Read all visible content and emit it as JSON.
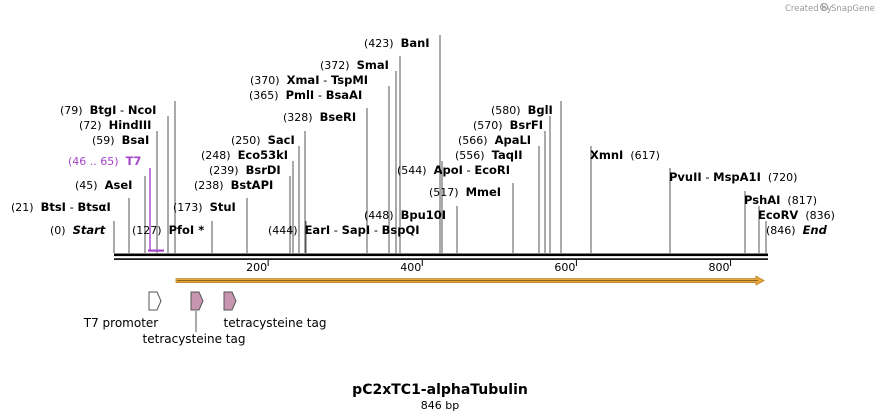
{
  "credit": {
    "prefix": "Created by",
    "brand": "SnapGene"
  },
  "sequence": {
    "name": "pC2xTC1-alphaTubulin",
    "length_label": "846 bp",
    "length": 846
  },
  "colors": {
    "backbone": "#000000",
    "orf_fill": "#e8a93c",
    "orf_edge": "#b87a1e",
    "primer": "#a646c8",
    "tag": "#c895b0"
  },
  "axis": {
    "ticks": [
      {
        "value": 200,
        "label": "200"
      },
      {
        "value": 400,
        "label": "400"
      },
      {
        "value": 600,
        "label": "600"
      },
      {
        "value": 800,
        "label": "800"
      }
    ]
  },
  "labels": [
    {
      "id": "start",
      "pos": 0,
      "pos_label": "(0)",
      "names": [
        "Start"
      ],
      "style": "italic"
    },
    {
      "id": "btsi",
      "pos": 21,
      "pos_label": "(21)",
      "names": [
        "BtsI",
        "BtsαI"
      ]
    },
    {
      "id": "asei",
      "pos": 45,
      "pos_label": "(45)",
      "names": [
        "AseI"
      ]
    },
    {
      "id": "t7",
      "pos": 46,
      "pos_label": "(46 .. 65)",
      "names": [
        "T7"
      ],
      "style": "primer"
    },
    {
      "id": "bsai",
      "pos": 59,
      "pos_label": "(59)",
      "names": [
        "BsaI"
      ]
    },
    {
      "id": "hindiii",
      "pos": 72,
      "pos_label": "(72)",
      "names": [
        "HindIII"
      ]
    },
    {
      "id": "btgi",
      "pos": 79,
      "pos_label": "(79)",
      "names": [
        "BtgI",
        "NcoI"
      ]
    },
    {
      "id": "pfoi",
      "pos": 127,
      "pos_label": "(127)",
      "names": [
        "PfoI *"
      ]
    },
    {
      "id": "stui",
      "pos": 173,
      "pos_label": "(173)",
      "names": [
        "StuI"
      ]
    },
    {
      "id": "bstapi",
      "pos": 238,
      "pos_label": "(238)",
      "names": [
        "BstAPI"
      ]
    },
    {
      "id": "bsrdi",
      "pos": 239,
      "pos_label": "(239)",
      "names": [
        "BsrDI"
      ]
    },
    {
      "id": "eco53ki",
      "pos": 248,
      "pos_label": "(248)",
      "names": [
        "Eco53kI"
      ]
    },
    {
      "id": "saci",
      "pos": 250,
      "pos_label": "(250)",
      "names": [
        "SacI"
      ]
    },
    {
      "id": "ear",
      "pos": 444,
      "pos_label": "(444)",
      "names": [
        "EarI",
        "SapI",
        "BspQI"
      ]
    },
    {
      "id": "bseri",
      "pos": 328,
      "pos_label": "(328)",
      "names": [
        "BseRI"
      ]
    },
    {
      "id": "pmli",
      "pos": 365,
      "pos_label": "(365)",
      "names": [
        "PmlI",
        "BsaAI"
      ]
    },
    {
      "id": "xmai",
      "pos": 370,
      "pos_label": "(370)",
      "names": [
        "XmaI",
        "TspMI"
      ]
    },
    {
      "id": "smai",
      "pos": 372,
      "pos_label": "(372)",
      "names": [
        "SmaI"
      ]
    },
    {
      "id": "bani",
      "pos": 423,
      "pos_label": "(423)",
      "names": [
        "BanI"
      ]
    },
    {
      "id": "bpu10i",
      "pos": 448,
      "pos_label": "(448)",
      "names": [
        "Bpu10I"
      ]
    },
    {
      "id": "apoi",
      "pos": 544,
      "pos_label": "(544)",
      "names": [
        "ApoI",
        "EcoRI"
      ]
    },
    {
      "id": "mmei",
      "pos": 517,
      "pos_label": "(517)",
      "names": [
        "MmeI"
      ]
    },
    {
      "id": "taqii",
      "pos": 556,
      "pos_label": "(556)",
      "names": [
        "TaqII"
      ]
    },
    {
      "id": "apali",
      "pos": 566,
      "pos_label": "(566)",
      "names": [
        "ApaLI"
      ]
    },
    {
      "id": "bsrfi",
      "pos": 570,
      "pos_label": "(570)",
      "names": [
        "BsrFI"
      ]
    },
    {
      "id": "bgli",
      "pos": 580,
      "pos_label": "(580)",
      "names": [
        "BglI"
      ]
    },
    {
      "id": "xmni",
      "pos": 617,
      "pos_label": "(617)",
      "names": [
        "XmnI"
      ]
    },
    {
      "id": "pvuii",
      "pos": 720,
      "pos_label": "(720)",
      "names": [
        "PvuII",
        "MspA1I"
      ]
    },
    {
      "id": "pshai",
      "pos": 817,
      "pos_label": "(817)",
      "names": [
        "PshAI"
      ]
    },
    {
      "id": "ecorv",
      "pos": 836,
      "pos_label": "(836)",
      "names": [
        "EcoRV"
      ]
    },
    {
      "id": "end",
      "pos": 846,
      "pos_label": "(846)",
      "names": [
        "End"
      ],
      "style": "italic"
    }
  ],
  "features": [
    {
      "id": "t7-promoter",
      "name": "T7 promoter",
      "start": 46,
      "end": 65,
      "type": "promoter"
    },
    {
      "id": "tc-tag-1",
      "name": "tetracysteine tag",
      "start": 99,
      "end": 116,
      "type": "tag"
    },
    {
      "id": "tc-tag-2",
      "name": "tetracysteine tag",
      "start": 141,
      "end": 158,
      "type": "tag"
    }
  ],
  "orf": {
    "start": 79,
    "end": 846,
    "direction": "forward"
  }
}
